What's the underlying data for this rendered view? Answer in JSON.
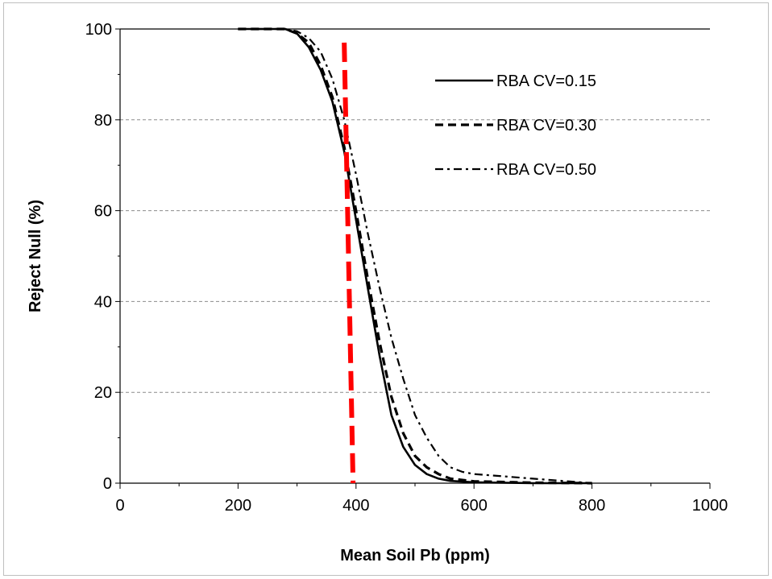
{
  "chart_data": {
    "type": "line",
    "xlabel": "Mean Soil Pb (ppm)",
    "ylabel": "Reject Null (%)",
    "xlim": [
      0,
      1000
    ],
    "ylim": [
      0,
      100
    ],
    "x_ticks": [
      "0",
      "200",
      "400",
      "600",
      "800",
      "1000"
    ],
    "y_ticks": [
      "0",
      "20",
      "40",
      "60",
      "80",
      "100"
    ],
    "grid": "horizontal dashed gridlines",
    "legend_position": "top-right",
    "series": [
      {
        "name": "RBA CV=0.15",
        "style": "solid",
        "color": "#000000",
        "x": [
          200,
          280,
          300,
          320,
          340,
          360,
          380,
          400,
          420,
          440,
          460,
          480,
          500,
          520,
          540,
          560,
          600,
          700,
          800
        ],
        "y": [
          100,
          100,
          99,
          96,
          91,
          84,
          73,
          58,
          43,
          28,
          15,
          8,
          4,
          2,
          1,
          0.5,
          0.2,
          0,
          0
        ]
      },
      {
        "name": "RBA CV=0.30",
        "style": "dashed",
        "color": "#000000",
        "x": [
          200,
          280,
          300,
          320,
          340,
          360,
          380,
          400,
          420,
          440,
          460,
          480,
          500,
          520,
          540,
          560,
          600,
          700,
          800
        ],
        "y": [
          100,
          100,
          99,
          97,
          92,
          85,
          74,
          60,
          45,
          31,
          19,
          11,
          6,
          3.5,
          2,
          1,
          0.4,
          0.1,
          0
        ]
      },
      {
        "name": "RBA CV=0.50",
        "style": "dash-dot",
        "color": "#000000",
        "x": [
          200,
          280,
          300,
          320,
          340,
          360,
          380,
          400,
          420,
          440,
          460,
          480,
          500,
          520,
          540,
          560,
          580,
          600,
          650,
          700,
          800
        ],
        "y": [
          100,
          100,
          99.5,
          98,
          95,
          89,
          80,
          68,
          55,
          43,
          32,
          23,
          15,
          10,
          6,
          3.5,
          2.5,
          2,
          1.5,
          1,
          0
        ]
      }
    ],
    "reference_line": {
      "style": "dashed",
      "color": "#ff0000",
      "x": [
        380,
        395
      ],
      "y": [
        97,
        0
      ]
    }
  }
}
